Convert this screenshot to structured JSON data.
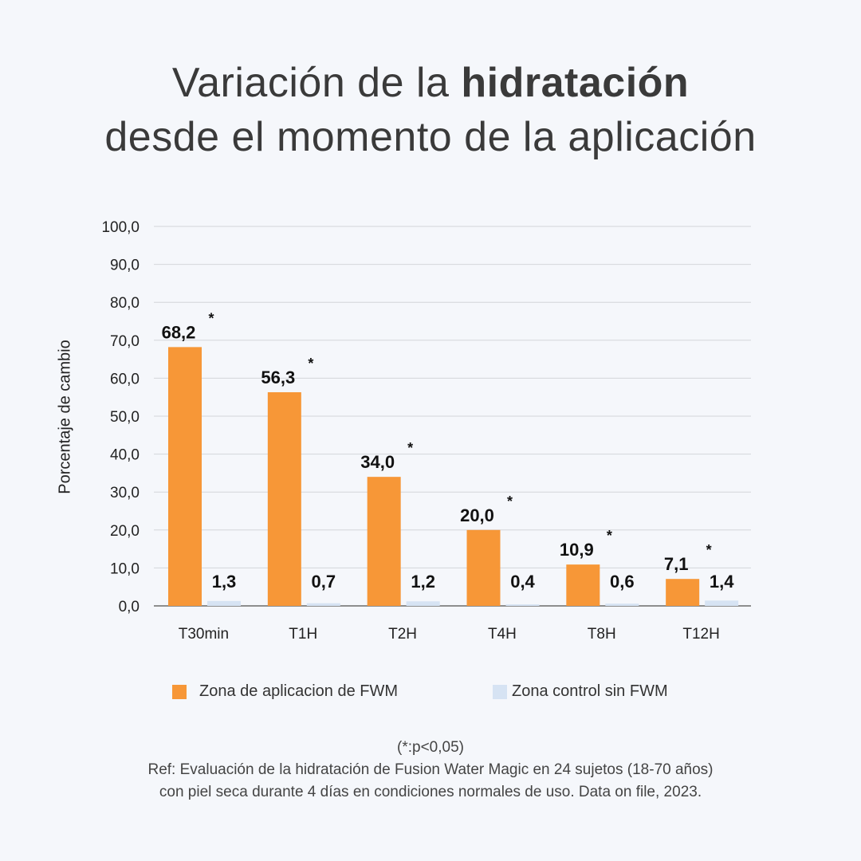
{
  "header": {
    "title_part1": "Variación de la ",
    "title_bold": "hidratación",
    "title_line2": "desde el momento de la aplicación"
  },
  "colors": {
    "fwm": "#f79737",
    "control": "#d6e3f3",
    "grid": "#d4d6da",
    "axis": "#6b6b6b"
  },
  "chart_data": {
    "type": "bar",
    "title": "Variación de la hidratación desde el momento de la aplicación",
    "xlabel": "",
    "ylabel": "Porcentaje de cambio",
    "ylim": [
      0,
      100
    ],
    "yticks": [
      "0,0",
      "10,0",
      "20,0",
      "30,0",
      "40,0",
      "50,0",
      "60,0",
      "70,0",
      "80,0",
      "90,0",
      "100,0"
    ],
    "categories": [
      "T30min",
      "T1H",
      "T2H",
      "T4H",
      "T8H",
      "T12H"
    ],
    "series": [
      {
        "name": "Zona de aplicacion de FWM",
        "values": [
          68.2,
          56.3,
          34.0,
          20.0,
          10.9,
          7.1
        ],
        "labels": [
          "68,2",
          "56,3",
          "34,0",
          "20,0",
          "10,9",
          "7,1"
        ],
        "significance": [
          "*",
          "*",
          "*",
          "*",
          "*",
          "*"
        ]
      },
      {
        "name": "Zona control sin FWM",
        "values": [
          1.3,
          0.7,
          1.2,
          0.4,
          0.6,
          1.4
        ],
        "labels": [
          "1,3",
          "0,7",
          "1,2",
          "0,4",
          "0,6",
          "1,4"
        ]
      }
    ],
    "legend_position": "bottom"
  },
  "footnote": {
    "significance": "(*:p<0,05)",
    "ref_line1": "Ref: Evaluación de la hidratación de Fusion Water Magic en 24 sujetos (18-70 años)",
    "ref_line2": "con piel seca durante 4 días en condiciones normales de uso. Data on file, 2023."
  }
}
